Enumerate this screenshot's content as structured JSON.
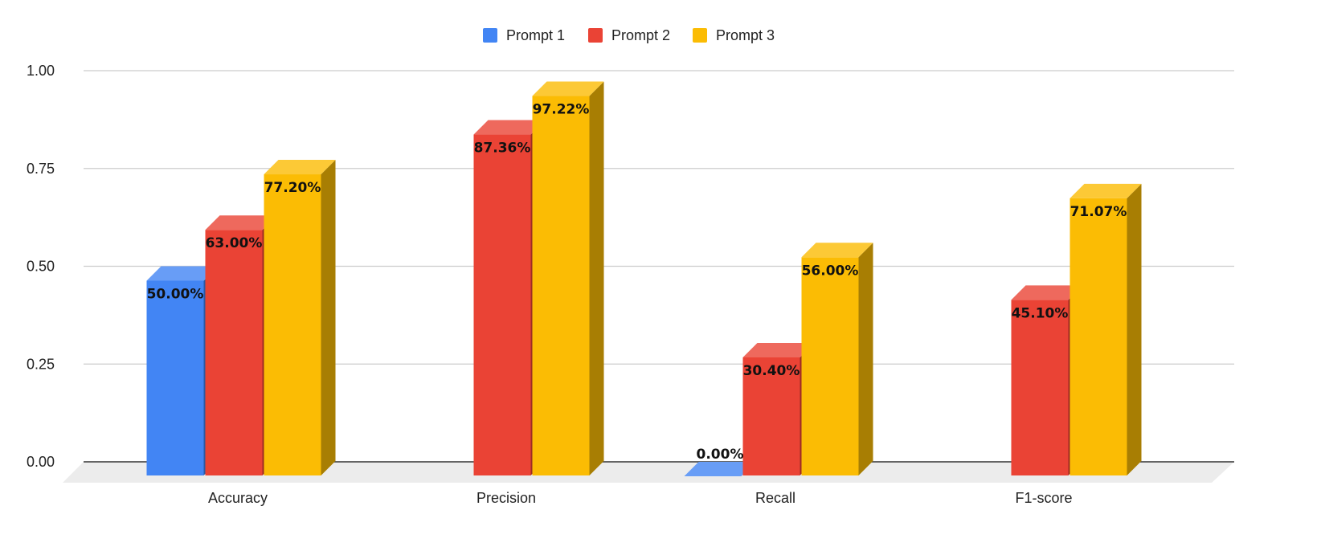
{
  "chart_data": {
    "type": "bar",
    "three_d": true,
    "categories": [
      "Accuracy",
      "Precision",
      "Recall",
      "F1-score"
    ],
    "series": [
      {
        "name": "Prompt 1",
        "color": "#4285F4",
        "values": [
          0.5,
          null,
          0.0,
          null
        ],
        "labels": [
          "50.00%",
          "",
          "0.00%",
          ""
        ]
      },
      {
        "name": "Prompt 2",
        "color": "#EA4335",
        "values": [
          0.63,
          0.8736,
          0.304,
          0.451
        ],
        "labels": [
          "63.00%",
          "87.36%",
          "30.40%",
          "45.10%"
        ]
      },
      {
        "name": "Prompt 3",
        "color": "#FBBC04",
        "values": [
          0.772,
          0.9722,
          0.56,
          0.7107
        ],
        "labels": [
          "77.20%",
          "97.22%",
          "56.00%",
          "71.07%"
        ]
      }
    ],
    "yticks": [
      "0.00",
      "0.25",
      "0.50",
      "0.75",
      "1.00"
    ],
    "ylim": [
      0,
      1
    ],
    "grid": true,
    "legend": "top-center",
    "title": "",
    "xlabel": "",
    "ylabel": ""
  }
}
